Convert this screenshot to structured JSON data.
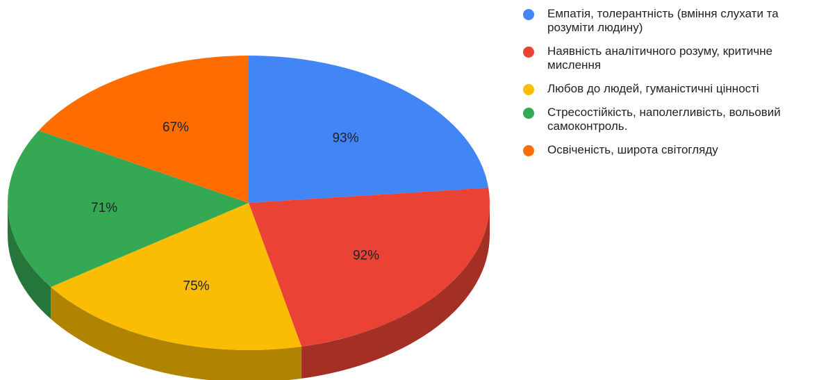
{
  "chart_data": {
    "type": "pie",
    "variant": "3d",
    "title": "",
    "legend_position": "right",
    "categories": [
      "Емпатія, толерантність (вміння слухати та розуміти людину)",
      "Наявність аналітичного розуму, критичне мислення",
      "Любов до людей, гуманістичні цінності",
      "Стресостійкість, наполегливість, вольовий самоконтроль.",
      "Освіченість, широта світогляду"
    ],
    "values": [
      93,
      92,
      75,
      71,
      67
    ],
    "data_labels": [
      "93%",
      "92%",
      "75%",
      "71%",
      "67%"
    ],
    "colors": [
      "#4285f4",
      "#ea4335",
      "#fbbc04",
      "#34a853",
      "#ff6d01"
    ],
    "side_colors": [
      "#2b5fb8",
      "#a32f25",
      "#b08300",
      "#24763a",
      "#b34c00"
    ]
  }
}
